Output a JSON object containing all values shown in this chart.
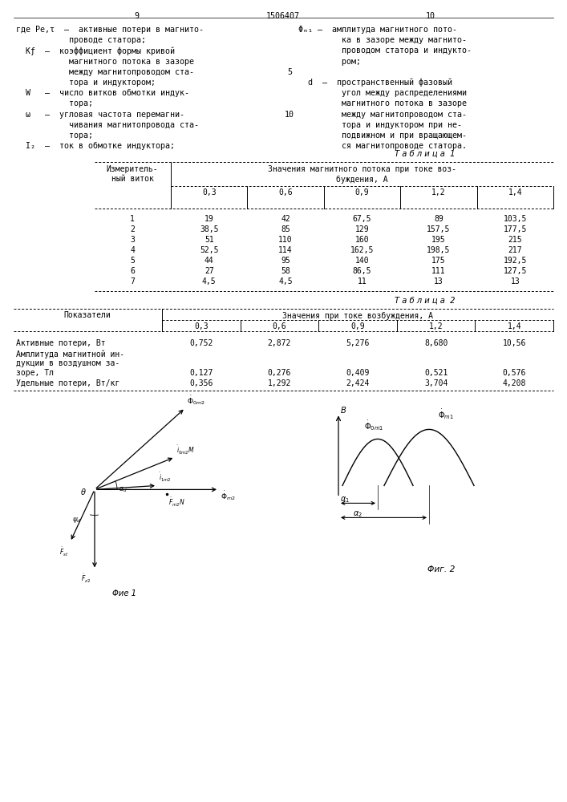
{
  "page_num_left": "9",
  "page_num_center": "1506407",
  "page_num_right": "10",
  "left_lines": [
    "где Pе,τ  –  активные потери в магнито-",
    "           проводе статора;",
    "  Kf  –  коэффициент формы кривой",
    "           магнитного потока в зазоре",
    "           между магнитопроводом ста-",
    "           тора и индуктором;",
    "  W   –  число витков обмотки индук-",
    "           тора;",
    "  ω   –  угловая частота перемагни-",
    "           чивания магнитопровода ста-",
    "           тора;",
    "  I₂  –  ток в обмотке индуктора;"
  ],
  "line_num_5_idx": 4,
  "line_num_10_idx": 8,
  "right_lines": [
    "Φₘ₁ –  амплитуда магнитного пото-",
    "         ка в зазоре между магнито-",
    "         проводом статора и индукто-",
    "         ром;",
    "",
    "  d  –  пространственный фазовый",
    "         угол между распределениями",
    "         магнитного потока в зазоре",
    "         между магнитопроводом ста-",
    "         тора и индуктором при не-",
    "         подвижном и при вращающем-",
    "         ся магнитопроводе статора."
  ],
  "table1_title": "Т а б л и ц а  1",
  "t1_header1": "Измеритель-",
  "t1_header2": "ный виток",
  "t1_header3": "Значения магнитного потока при токе воз-",
  "t1_header4": "буждения, А",
  "t1_sub_headers": [
    "0,3",
    "0,6",
    "0,9",
    "1,2",
    "1,4"
  ],
  "t1_data": [
    [
      "1",
      "19",
      "42",
      "67,5",
      "89",
      "103,5"
    ],
    [
      "2",
      "38,5",
      "85",
      "129",
      "157,5",
      "177,5"
    ],
    [
      "3",
      "51",
      "110",
      "160",
      "195",
      "215"
    ],
    [
      "4",
      "52,5",
      "114",
      "162,5",
      "198,5",
      "217"
    ],
    [
      "5",
      "44",
      "95",
      "140",
      "175",
      "192,5"
    ],
    [
      "6",
      "27",
      "58",
      "86,5",
      "111",
      "127,5"
    ],
    [
      "7",
      "4,5",
      "4,5",
      "11",
      "13",
      "13"
    ]
  ],
  "table2_title": "Т а б л и ц а  2",
  "t2_header1": "Показатели",
  "t2_header2": "Значения при токе возбуждения, А",
  "t2_sub_headers": [
    "0,3",
    "0,6",
    "0,9",
    "1,2",
    "1,4"
  ],
  "t2_row1_label": "Активные потери, Вт",
  "t2_row2_label_lines": [
    "Амплитуда магнитной ин-",
    "дукции в воздушном за-",
    "зоре, Тл"
  ],
  "t2_row3_label": "Удельные потери, Вт/кг",
  "t2_row1_vals": [
    "0,752",
    "2,872",
    "5,276",
    "8,680",
    "10,56"
  ],
  "t2_row2_vals": [
    "0,127",
    "0,276",
    "0,409",
    "0,521",
    "0,576"
  ],
  "t2_row3_vals": [
    "0,356",
    "1,292",
    "2,424",
    "3,704",
    "4,208"
  ],
  "fig1_caption": "Φие 1",
  "fig2_caption": "Φиг. 2"
}
